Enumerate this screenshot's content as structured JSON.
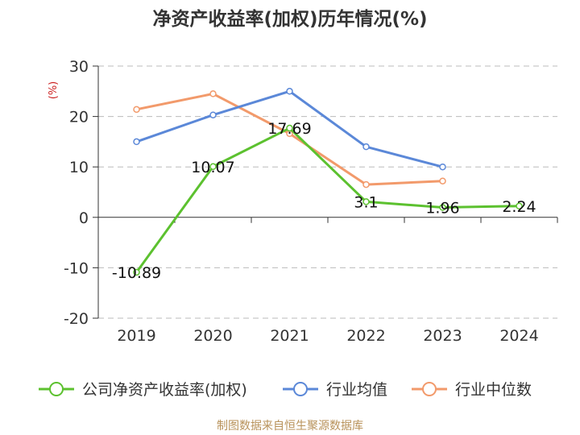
{
  "chart_data": {
    "type": "line",
    "title": "净资产收益率(加权)历年情况(%)",
    "ylabel": "(%)",
    "categories": [
      "2019",
      "2020",
      "2021",
      "2022",
      "2023",
      "2024"
    ],
    "ylim": [
      -20,
      30
    ],
    "yticks": [
      30,
      20,
      10,
      0,
      -10,
      -20
    ],
    "grid": true,
    "legend_position": "bottom",
    "series": [
      {
        "name": "公司净资产收益率(加权)",
        "color": "#5cc12f",
        "values": [
          -10.89,
          10.07,
          17.69,
          3.1,
          1.96,
          2.24
        ],
        "labels": [
          "-10.89",
          "10.07",
          "17.69",
          "3.1",
          "1.96",
          "2.24"
        ]
      },
      {
        "name": "行业均值",
        "color": "#5b88d8",
        "values": [
          15.0,
          20.3,
          25.0,
          14.0,
          10.0,
          null
        ]
      },
      {
        "name": "行业中位数",
        "color": "#f29a6b",
        "values": [
          21.4,
          24.5,
          16.6,
          6.5,
          7.2,
          null
        ]
      }
    ]
  },
  "source": "制图数据来自恒生聚源数据库"
}
